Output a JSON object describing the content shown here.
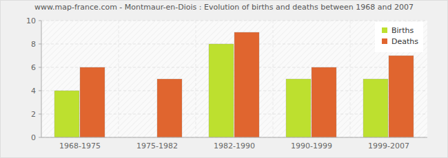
{
  "chart_data": {
    "type": "bar",
    "title": "www.map-france.com - Montmaur-en-Diois : Evolution of births and deaths between 1968 and 2007",
    "categories": [
      "1968-1975",
      "1975-1982",
      "1982-1990",
      "1990-1999",
      "1999-2007"
    ],
    "series": [
      {
        "name": "Births",
        "color": "#bde02f",
        "values": [
          4,
          0,
          8,
          5,
          5
        ]
      },
      {
        "name": "Deaths",
        "color": "#e0652f",
        "values": [
          6,
          5,
          9,
          6,
          7
        ]
      }
    ],
    "ylim": [
      0,
      10
    ],
    "yticks": [
      0,
      2,
      4,
      6,
      8,
      10
    ],
    "grid": true,
    "legend": "top-right"
  }
}
